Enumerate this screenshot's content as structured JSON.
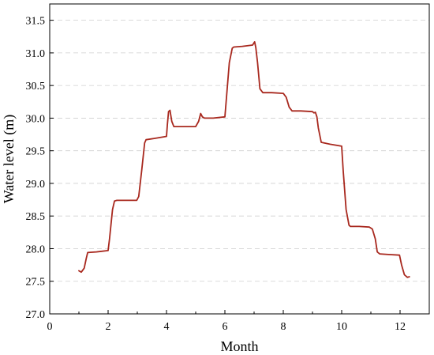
{
  "chart_data": {
    "type": "line",
    "title": "",
    "xlabel": "Month",
    "ylabel": "Water level (m)",
    "xlim": [
      0,
      13
    ],
    "ylim": [
      27.0,
      31.75
    ],
    "grid": true,
    "legend": "none",
    "xticks": [
      0,
      2,
      4,
      6,
      8,
      10,
      12
    ],
    "xtick_labels": [
      "0",
      "2",
      "4",
      "6",
      "8",
      "10",
      "12"
    ],
    "yticks": [
      27.0,
      27.5,
      28.0,
      28.5,
      29.0,
      29.5,
      30.0,
      30.5,
      31.0,
      31.5
    ],
    "ytick_labels": [
      "27.0",
      "27.5",
      "28.0",
      "28.5",
      "29.0",
      "29.5",
      "30.0",
      "30.5",
      "31.0",
      "31.5"
    ],
    "colors": {
      "line": "#a8281e",
      "grid": "#cfcfcf"
    },
    "series": [
      {
        "x": [
          1.0,
          1.08,
          1.18,
          1.25,
          1.3,
          1.6,
          2.0,
          2.05,
          2.15,
          2.22,
          2.3,
          2.6,
          2.98,
          3.05,
          3.15,
          3.25,
          3.3,
          3.6,
          4.0,
          4.03,
          4.07,
          4.12,
          4.18,
          4.25,
          4.4,
          4.8,
          5.0,
          5.1,
          5.17,
          5.23,
          5.3,
          5.6,
          6.0,
          6.05,
          6.15,
          6.25,
          6.3,
          6.6,
          6.95,
          7.02,
          7.06,
          7.12,
          7.2,
          7.3,
          7.6,
          8.0,
          8.1,
          8.2,
          8.3,
          8.6,
          9.0,
          9.05,
          9.1,
          9.15,
          9.2,
          9.3,
          9.6,
          10.0,
          10.05,
          10.15,
          10.25,
          10.3,
          10.6,
          10.95,
          11.05,
          11.15,
          11.22,
          11.3,
          11.6,
          11.98,
          12.05,
          12.15,
          12.25,
          12.32
        ],
        "y": [
          27.66,
          27.64,
          27.7,
          27.85,
          27.94,
          27.95,
          27.97,
          28.15,
          28.6,
          28.73,
          28.74,
          28.74,
          28.74,
          28.8,
          29.2,
          29.62,
          29.67,
          29.69,
          29.72,
          29.9,
          30.1,
          30.12,
          29.95,
          29.87,
          29.87,
          29.87,
          29.87,
          29.95,
          30.07,
          30.02,
          30.0,
          30.0,
          30.02,
          30.3,
          30.85,
          31.07,
          31.09,
          31.1,
          31.12,
          31.17,
          31.08,
          30.85,
          30.45,
          30.39,
          30.39,
          30.38,
          30.32,
          30.17,
          30.11,
          30.11,
          30.1,
          30.08,
          30.09,
          30.02,
          29.85,
          29.63,
          29.6,
          29.57,
          29.2,
          28.6,
          28.36,
          28.34,
          28.34,
          28.33,
          28.3,
          28.15,
          27.95,
          27.92,
          27.91,
          27.9,
          27.75,
          27.6,
          27.56,
          27.57
        ]
      }
    ]
  }
}
